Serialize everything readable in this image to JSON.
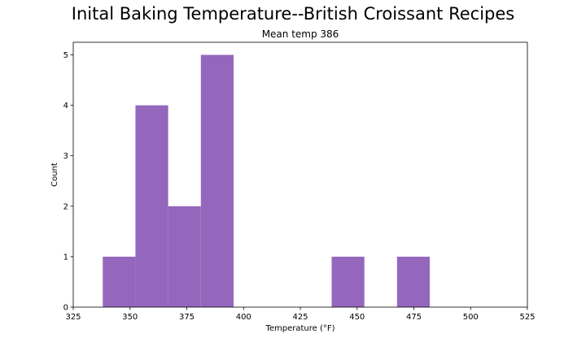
{
  "chart_data": {
    "type": "bar",
    "title": "Inital Baking Temperature--British Croissant Recipes",
    "subtitle": "Mean temp 386",
    "xlabel": "Temperature (°F)",
    "ylabel": "Count",
    "xlim": [
      325,
      525
    ],
    "ylim": [
      0,
      5.25
    ],
    "x_ticks": [
      325,
      350,
      375,
      400,
      425,
      450,
      475,
      500,
      525
    ],
    "y_ticks": [
      0,
      1,
      2,
      3,
      4,
      5
    ],
    "bar_color": "#9467bd",
    "bins": [
      {
        "x0": 338.0,
        "x1": 352.4,
        "count": 1
      },
      {
        "x0": 352.4,
        "x1": 366.8,
        "count": 4
      },
      {
        "x0": 366.8,
        "x1": 381.2,
        "count": 2
      },
      {
        "x0": 381.2,
        "x1": 395.6,
        "count": 5
      },
      {
        "x0": 395.6,
        "x1": 410.0,
        "count": 0
      },
      {
        "x0": 410.0,
        "x1": 424.4,
        "count": 0
      },
      {
        "x0": 424.4,
        "x1": 438.8,
        "count": 0
      },
      {
        "x0": 438.8,
        "x1": 453.2,
        "count": 1
      },
      {
        "x0": 453.2,
        "x1": 467.6,
        "count": 0
      },
      {
        "x0": 467.6,
        "x1": 482.0,
        "count": 1
      }
    ],
    "grid": false
  }
}
